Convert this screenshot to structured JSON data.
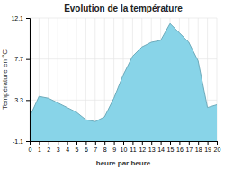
{
  "chart_data": {
    "type": "area",
    "title": "Evolution de la température",
    "xlabel": "heure par heure",
    "ylabel": "Température en °C",
    "x": [
      0,
      1,
      2,
      3,
      4,
      5,
      6,
      7,
      8,
      9,
      10,
      11,
      12,
      13,
      14,
      15,
      16,
      17,
      18,
      19,
      20
    ],
    "values": [
      1.5,
      3.7,
      3.5,
      3.0,
      2.5,
      2.0,
      1.2,
      1.0,
      1.5,
      3.5,
      6.0,
      8.0,
      9.0,
      9.5,
      9.7,
      11.5,
      10.5,
      9.5,
      7.5,
      2.5,
      2.8
    ],
    "color": "#88d4e8",
    "xlim": [
      0,
      20
    ],
    "xticks": [
      0,
      1,
      2,
      3,
      4,
      5,
      6,
      7,
      8,
      9,
      10,
      11,
      12,
      13,
      14,
      15,
      16,
      17,
      18,
      19,
      20
    ],
    "ylim": [
      -1.1,
      12.1
    ],
    "yticks": [
      -1.1,
      3.3,
      7.7,
      12.1
    ],
    "grid": true
  }
}
